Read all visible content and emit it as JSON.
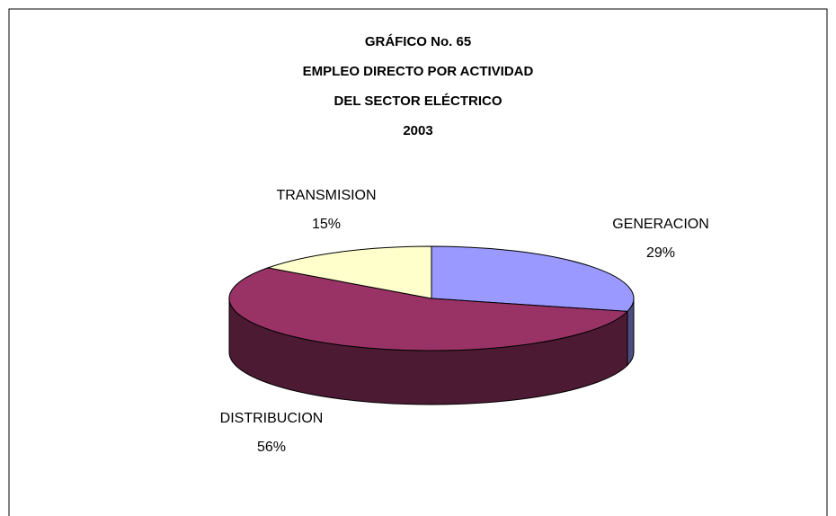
{
  "chart_data": {
    "type": "pie3d",
    "title": [
      "GRÁFICO No. 65",
      "EMPLEO DIRECTO POR ACTIVIDAD",
      "DEL SECTOR ELÉCTRICO",
      "2003"
    ],
    "categories": [
      "GENERACION",
      "DISTRIBUCION",
      "TRANSMISION"
    ],
    "values": [
      29,
      56,
      15
    ],
    "value_labels": [
      "29%",
      "56%",
      "15%"
    ],
    "colors": [
      "#9999ff",
      "#993366",
      "#ffffcc"
    ]
  }
}
